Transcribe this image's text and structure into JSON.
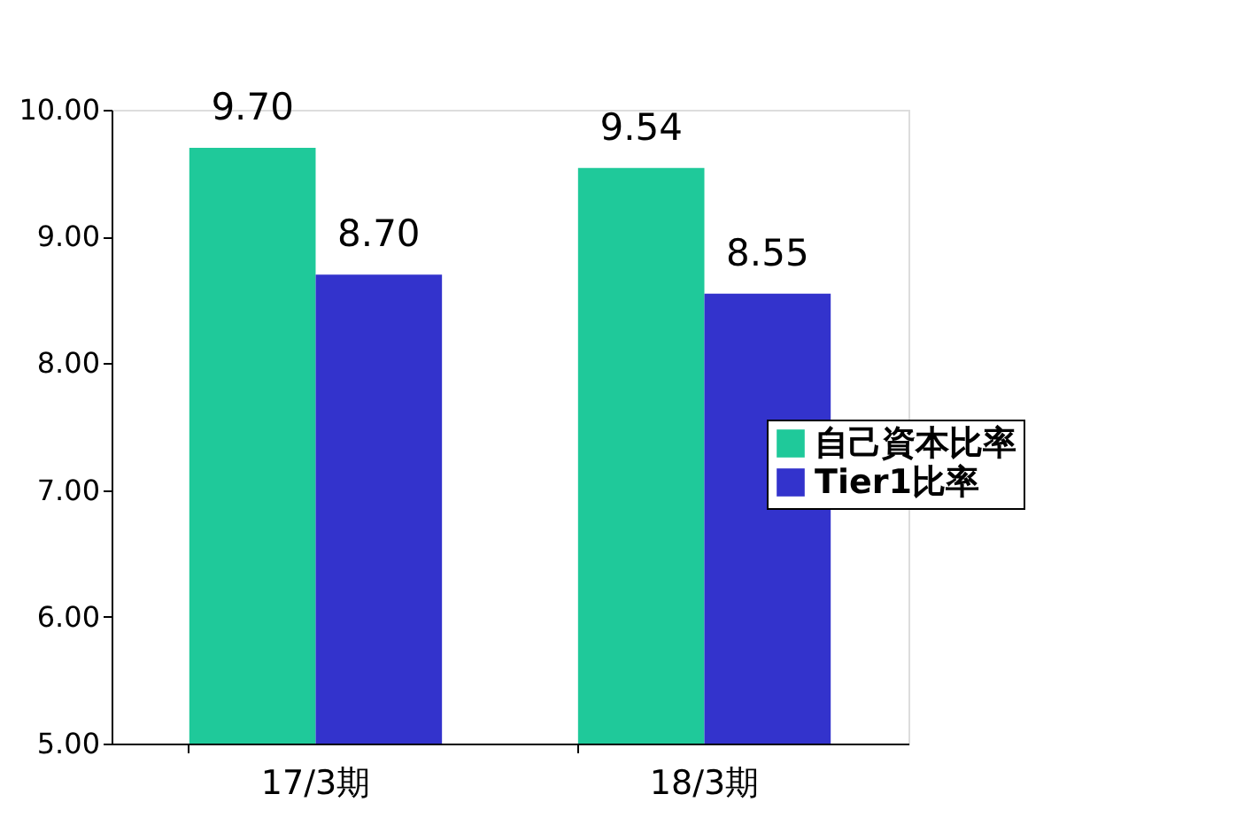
{
  "chart_data": {
    "type": "bar",
    "categories": [
      "17/3期",
      "18/3期"
    ],
    "series": [
      {
        "name": "自己資本比率",
        "color": "#1fc99a",
        "values": [
          9.7,
          9.54
        ],
        "value_labels": [
          "9.70",
          "9.54"
        ]
      },
      {
        "name": "Tier1比率",
        "color": "#3333cc",
        "values": [
          8.7,
          8.55
        ],
        "value_labels": [
          "8.70",
          "8.55"
        ]
      }
    ],
    "ylim": [
      5,
      10
    ],
    "yticks": [
      {
        "value": 5,
        "label": "5.00"
      },
      {
        "value": 6,
        "label": "6.00"
      },
      {
        "value": 7,
        "label": "7.00"
      },
      {
        "value": 8,
        "label": "8.00"
      },
      {
        "value": 9,
        "label": "9.00"
      },
      {
        "value": 10,
        "label": "10.00"
      }
    ],
    "grid": false,
    "legend": "right"
  }
}
